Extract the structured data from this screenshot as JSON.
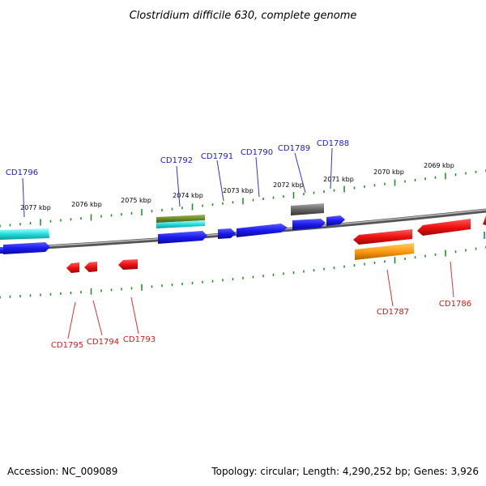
{
  "title": "Clostridium difficile 630, complete genome",
  "footer": {
    "accession": "Accession: NC_009089",
    "summary": "Topology: circular; Length: 4,290,252 bp; Genes: 3,926"
  },
  "scale_labels": [
    "2077 kbp",
    "2076 kbp",
    "2075 kbp",
    "2074 kbp",
    "2073 kbp",
    "2072 kbp",
    "2071 kbp",
    "2070 kbp",
    "2069 kbp"
  ],
  "top_gene_labels": [
    "CD1796",
    "CD1792",
    "CD1791",
    "CD1790",
    "CD1789",
    "CD1788"
  ],
  "bottom_gene_labels": [
    "CD1795",
    "CD1794",
    "CD1793",
    "CD1787",
    "CD1786"
  ],
  "colors": {
    "forward_gene": "#1a1aee",
    "reverse_gene": "#ee1111",
    "label_top": "#1a1acc",
    "label_bottom": "#cc1a1a",
    "tick": "#1a8a1a",
    "backbone": "#888888",
    "feature_cyan": "#22dddd",
    "feature_olive": "#6e8a2a",
    "feature_gray": "#666666",
    "feature_orange": "#ff9911"
  }
}
